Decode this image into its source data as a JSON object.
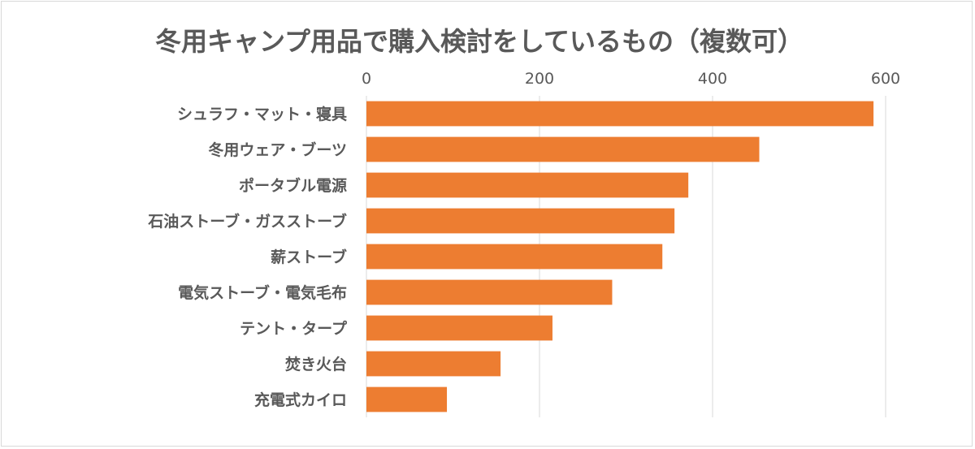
{
  "chart_data": {
    "type": "bar",
    "orientation": "horizontal",
    "title": "冬用キャンプ用品で購入検討をしているもの（複数可）",
    "xlabel": "",
    "ylabel": "",
    "xlim": [
      0,
      600
    ],
    "x_ticks": [
      0,
      200,
      400,
      600
    ],
    "x_axis_position": "top",
    "grid": true,
    "legend": "none",
    "bar_color": "#ED7D31",
    "categories": [
      "シュラフ・マット・寝具",
      "冬用ウェア・ブーツ",
      "ポータブル電源",
      "石油ストーブ・ガスストーブ",
      "薪ストーブ",
      "電気ストーブ・電気毛布",
      "テント・タープ",
      "焚き火台",
      "充電式カイロ"
    ],
    "values": [
      586,
      454,
      372,
      356,
      342,
      284,
      215,
      155,
      93
    ]
  }
}
